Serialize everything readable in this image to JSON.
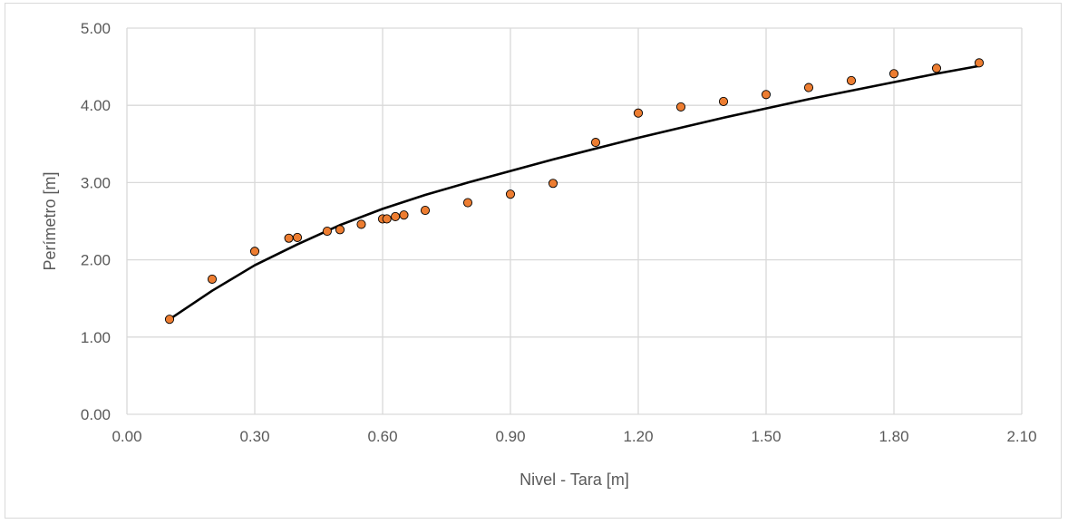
{
  "chart_data": {
    "type": "scatter",
    "title": "",
    "xlabel": "Nivel - Tara [m]",
    "ylabel": "Perímetro [m]",
    "xlim": [
      0,
      2.1
    ],
    "ylim": [
      0,
      5
    ],
    "x_ticks": [
      "0.00",
      "0.30",
      "0.60",
      "0.90",
      "1.20",
      "1.50",
      "1.80",
      "2.10"
    ],
    "y_ticks": [
      "0.00",
      "1.00",
      "2.00",
      "3.00",
      "4.00",
      "5.00"
    ],
    "x_tick_values": [
      0,
      0.3,
      0.6,
      0.9,
      1.2,
      1.5,
      1.8,
      2.1
    ],
    "y_tick_values": [
      0,
      1,
      2,
      3,
      4,
      5
    ],
    "grid": "vertical and horizontal",
    "legend": "none",
    "series": [
      {
        "type": "scatter",
        "marker_color": "#ED7D31",
        "marker_edge_color": "#000000",
        "x": [
          0.1,
          0.2,
          0.3,
          0.38,
          0.4,
          0.47,
          0.5,
          0.55,
          0.6,
          0.61,
          0.63,
          0.65,
          0.7,
          0.8,
          0.9,
          1.0,
          1.1,
          1.2,
          1.3,
          1.4,
          1.5,
          1.6,
          1.7,
          1.8,
          1.9,
          2.0
        ],
        "y": [
          1.23,
          1.75,
          2.11,
          2.28,
          2.29,
          2.37,
          2.39,
          2.46,
          2.53,
          2.53,
          2.56,
          2.58,
          2.64,
          2.74,
          2.85,
          2.99,
          3.52,
          3.9,
          3.98,
          4.05,
          4.14,
          4.23,
          4.32,
          4.41,
          4.48,
          4.55
        ]
      },
      {
        "type": "line",
        "line_color": "#000000",
        "x": [
          0.1,
          0.2,
          0.3,
          0.4,
          0.5,
          0.6,
          0.7,
          0.8,
          0.9,
          1.0,
          1.1,
          1.2,
          1.3,
          1.4,
          1.5,
          1.6,
          1.7,
          1.8,
          1.9,
          2.0
        ],
        "y": [
          1.23,
          1.6,
          1.93,
          2.2,
          2.45,
          2.66,
          2.84,
          3.0,
          3.15,
          3.3,
          3.44,
          3.58,
          3.71,
          3.84,
          3.96,
          4.08,
          4.19,
          4.3,
          4.41,
          4.51
        ]
      }
    ]
  }
}
